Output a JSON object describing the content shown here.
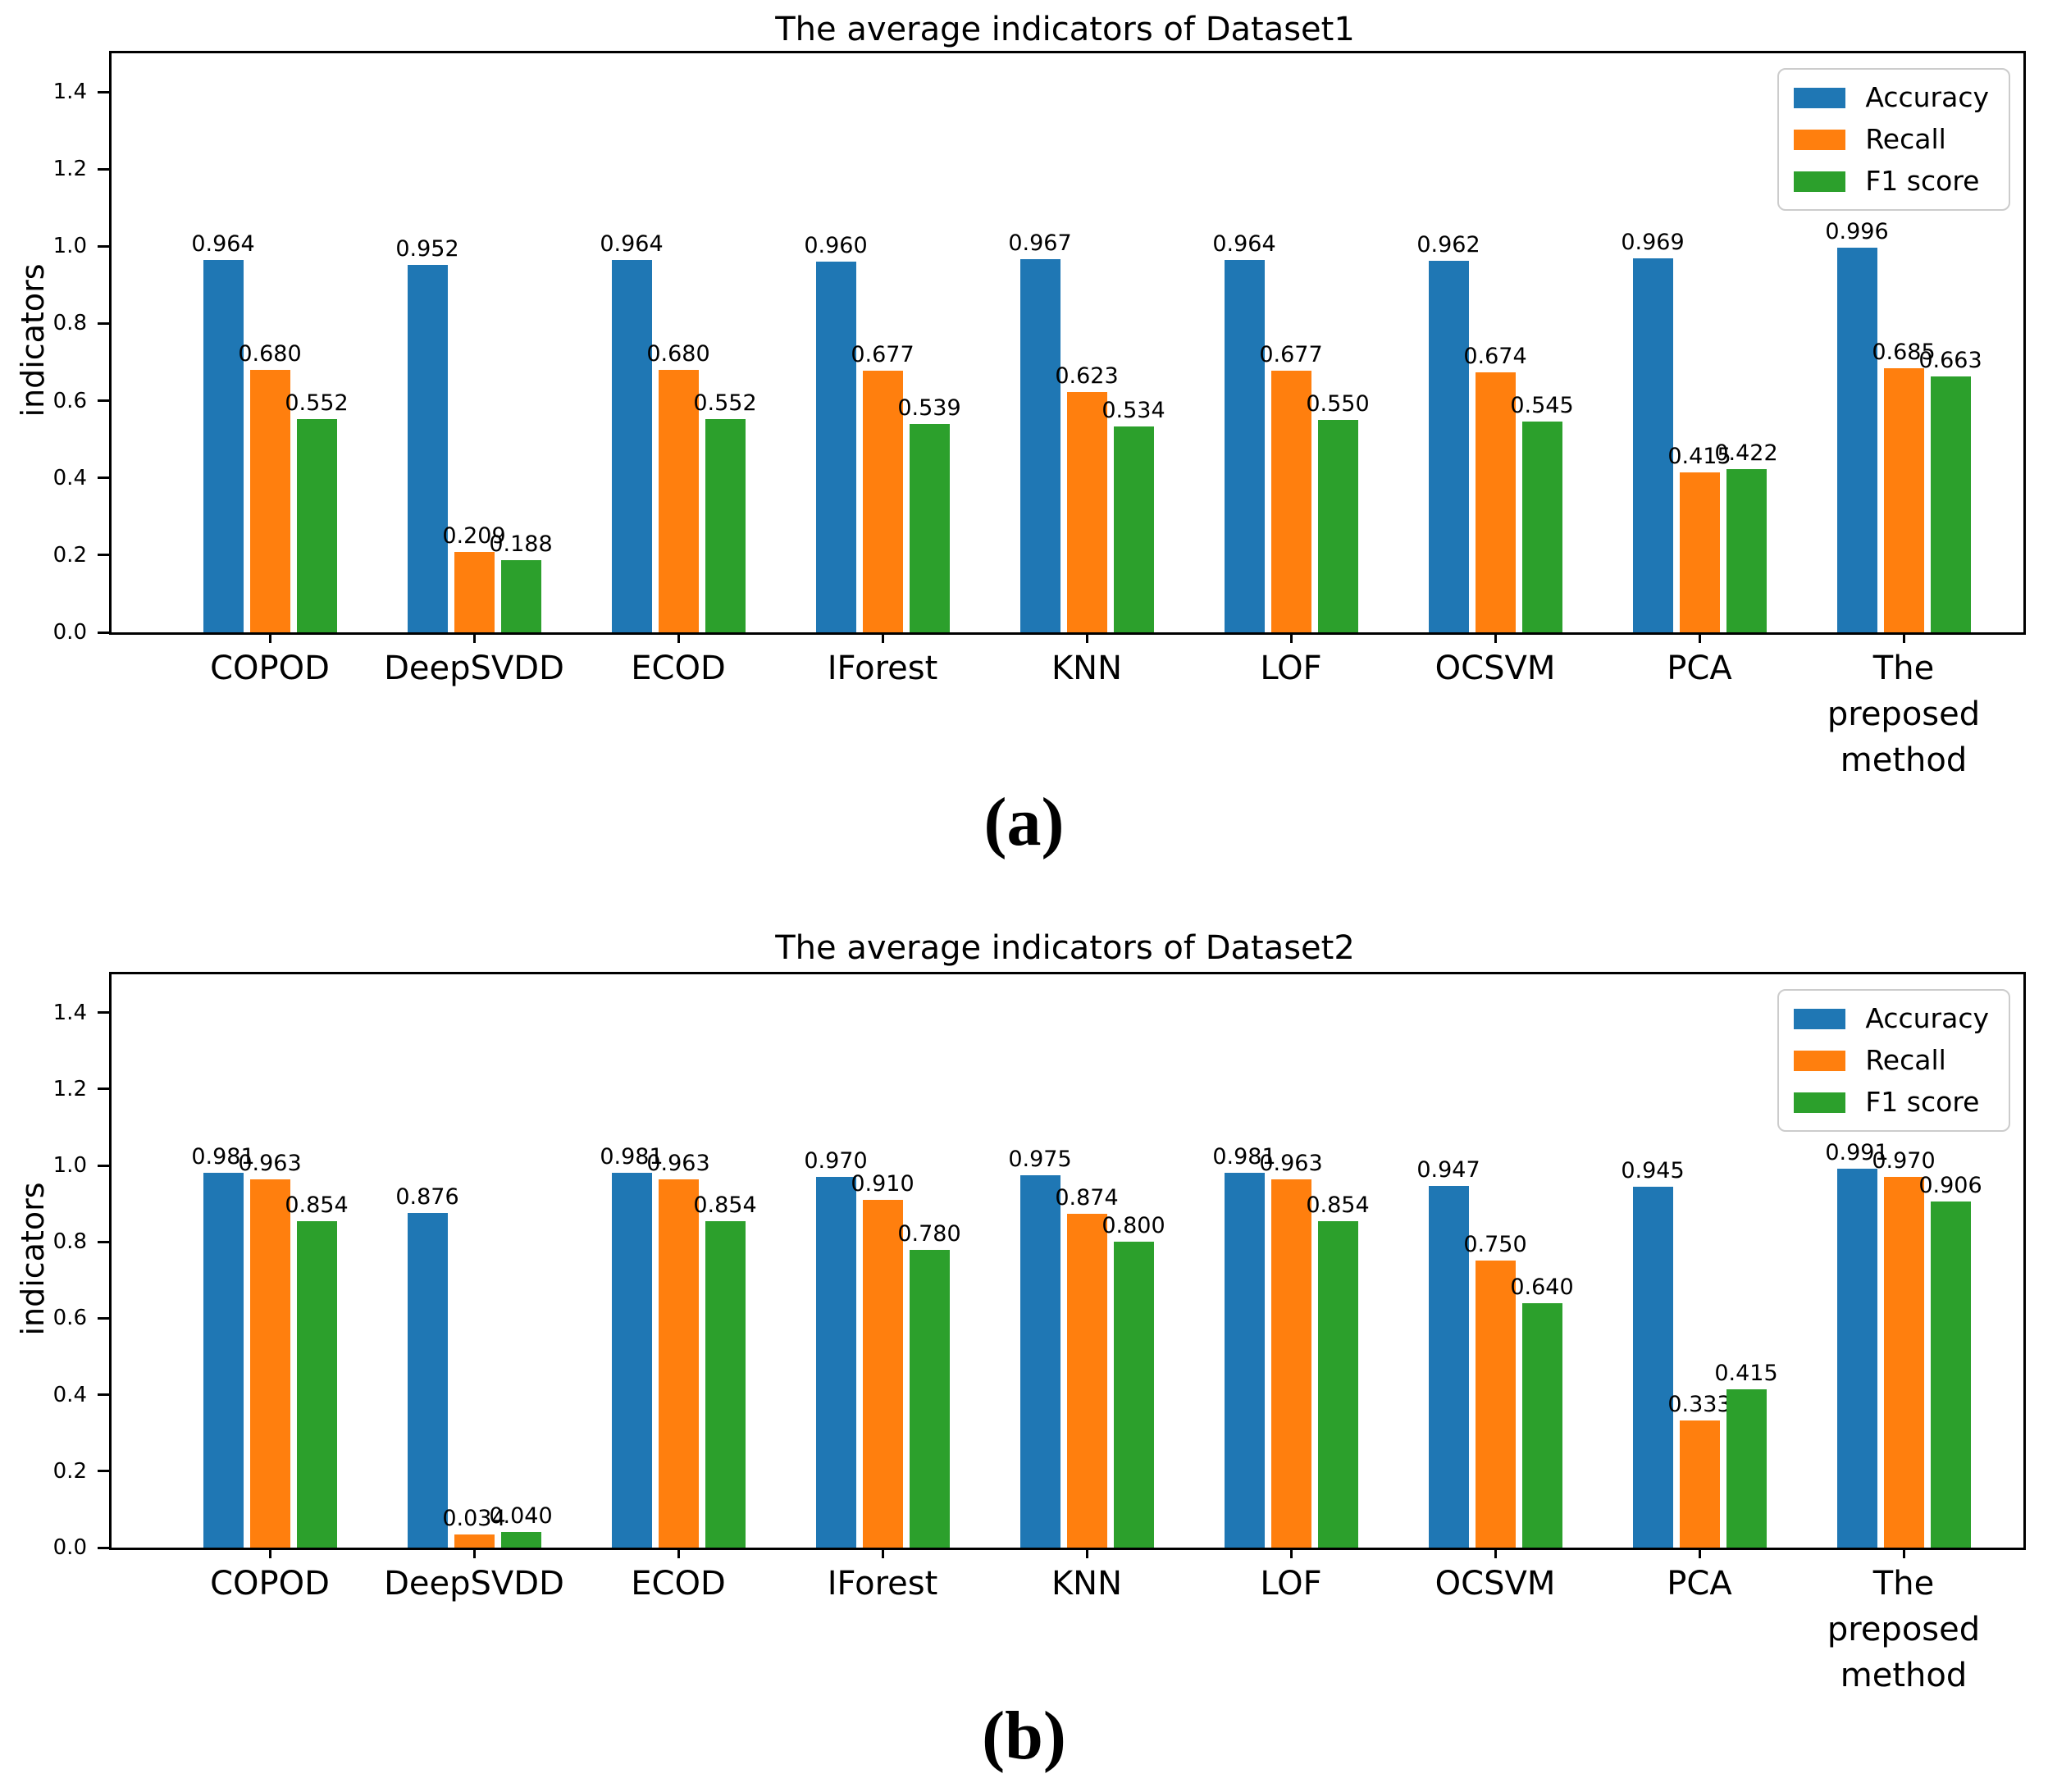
{
  "chart_data": [
    {
      "type": "bar",
      "title": "The average indicators of Dataset1",
      "caption": "(a)",
      "xlabel": "",
      "ylabel": "indicators",
      "ylim": [
        0,
        1.5
      ],
      "yticks": [
        0.0,
        0.2,
        0.4,
        0.6,
        0.8,
        1.0,
        1.2,
        1.4
      ],
      "grid": false,
      "legend_position": "upper right",
      "value_label_decimals": 3,
      "categories": [
        "COPOD",
        "DeepSVDD",
        "ECOD",
        "IForest",
        "KNN",
        "LOF",
        "OCSVM",
        "PCA",
        "The\npreposed\nmethod"
      ],
      "series": [
        {
          "name": "Accuracy",
          "color": "#1f77b4",
          "values": [
            0.964,
            0.952,
            0.964,
            0.96,
            0.967,
            0.964,
            0.962,
            0.969,
            0.996
          ]
        },
        {
          "name": "Recall",
          "color": "#ff7f0e",
          "values": [
            0.68,
            0.209,
            0.68,
            0.677,
            0.623,
            0.677,
            0.674,
            0.415,
            0.685
          ]
        },
        {
          "name": "F1 score",
          "color": "#2ca02c",
          "values": [
            0.552,
            0.188,
            0.552,
            0.539,
            0.534,
            0.55,
            0.545,
            0.422,
            0.663
          ]
        }
      ]
    },
    {
      "type": "bar",
      "title": "The average indicators of Dataset2",
      "caption": "(b)",
      "xlabel": "",
      "ylabel": "indicators",
      "ylim": [
        0,
        1.5
      ],
      "yticks": [
        0.0,
        0.2,
        0.4,
        0.6,
        0.8,
        1.0,
        1.2,
        1.4
      ],
      "grid": false,
      "legend_position": "upper right",
      "value_label_decimals": 3,
      "categories": [
        "COPOD",
        "DeepSVDD",
        "ECOD",
        "IForest",
        "KNN",
        "LOF",
        "OCSVM",
        "PCA",
        "The\npreposed\nmethod"
      ],
      "series": [
        {
          "name": "Accuracy",
          "color": "#1f77b4",
          "values": [
            0.981,
            0.876,
            0.981,
            0.97,
            0.975,
            0.981,
            0.947,
            0.945,
            0.991
          ]
        },
        {
          "name": "Recall",
          "color": "#ff7f0e",
          "values": [
            0.963,
            0.034,
            0.963,
            0.91,
            0.874,
            0.963,
            0.75,
            0.333,
            0.97
          ]
        },
        {
          "name": "F1 score",
          "color": "#2ca02c",
          "values": [
            0.854,
            0.04,
            0.854,
            0.78,
            0.8,
            0.854,
            0.64,
            0.415,
            0.906
          ]
        }
      ]
    }
  ]
}
